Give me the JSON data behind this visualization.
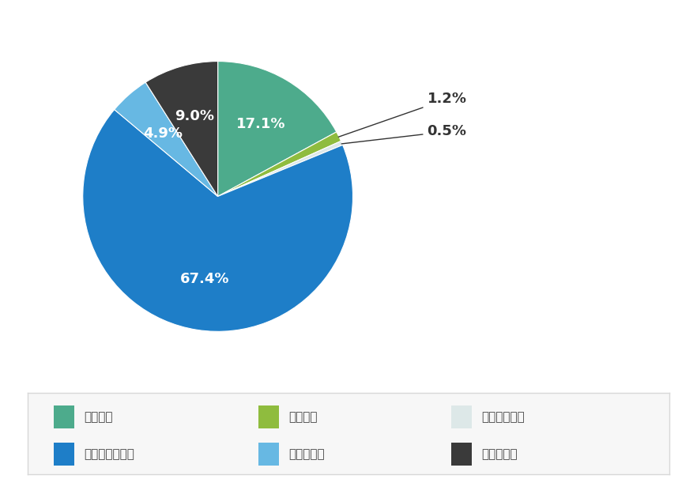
{
  "labels": [
    "金融機関",
    "証券会社",
    "自己名義株式",
    "その他国内法人",
    "個人その他",
    "外国法人等"
  ],
  "values": [
    17.1,
    1.2,
    0.5,
    67.4,
    4.9,
    9.0
  ],
  "colors": [
    "#4dab8c",
    "#8fbc3e",
    "#dde8e8",
    "#1e7ec8",
    "#67b8e3",
    "#3a3a3a"
  ],
  "startangle": 90,
  "background_color": "#ffffff",
  "legend_bg": "#f7f7f7",
  "legend_border": "#d8d8d8",
  "text_color": "#444444",
  "label_fontsize": 13,
  "legend_fontsize": 11,
  "outside_label_color": "#333333"
}
